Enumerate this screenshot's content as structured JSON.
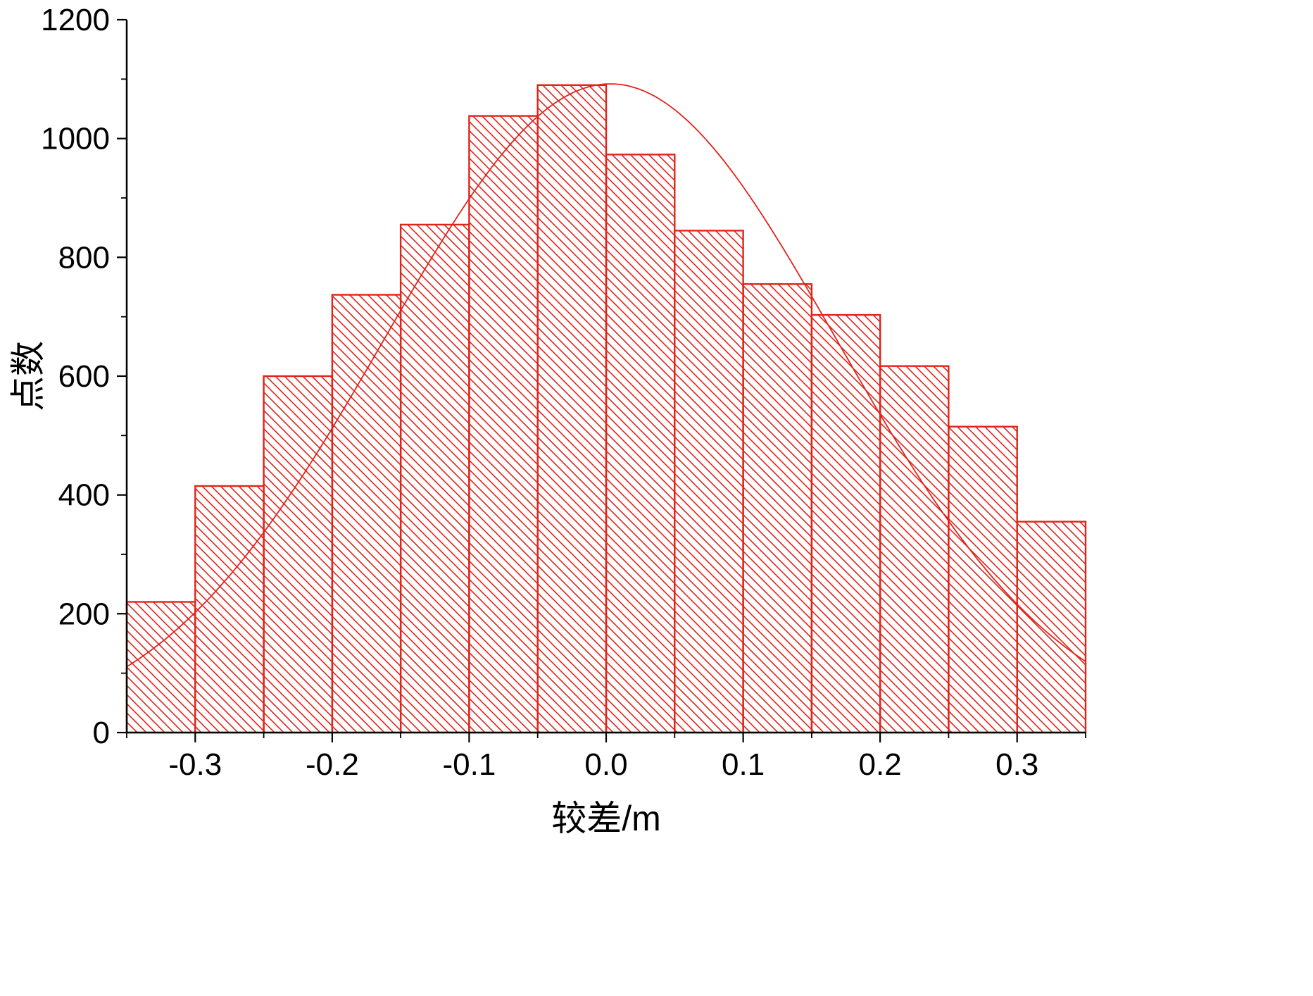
{
  "chart_data": {
    "type": "bar",
    "subtype": "histogram-with-gaussian-fit",
    "title": "",
    "xlabel": "较差/m",
    "ylabel": "点数",
    "xlim": [
      -0.35,
      0.35
    ],
    "ylim": [
      0,
      1200
    ],
    "grid": false,
    "legend": false,
    "x_ticks": [
      -0.3,
      -0.2,
      -0.1,
      0.0,
      0.1,
      0.2,
      0.3
    ],
    "x_tick_labels": [
      "-0.3",
      "-0.2",
      "-0.1",
      "0.0",
      "0.1",
      "0.2",
      "0.3"
    ],
    "x_minor_ticks": [
      -0.35,
      -0.25,
      -0.15,
      -0.05,
      0.05,
      0.15,
      0.25,
      0.35
    ],
    "y_ticks": [
      0,
      200,
      400,
      600,
      800,
      1000,
      1200
    ],
    "y_minor_ticks": [
      100,
      300,
      500,
      700,
      900,
      1100
    ],
    "bin_width": 0.05,
    "bin_edges": [
      -0.35,
      -0.3,
      -0.25,
      -0.2,
      -0.15,
      -0.1,
      -0.05,
      0.0,
      0.05,
      0.1,
      0.15,
      0.2,
      0.25,
      0.3,
      0.35
    ],
    "values": [
      220,
      415,
      600,
      737,
      855,
      1038,
      1090,
      973,
      845,
      755,
      703,
      617,
      515,
      355
    ],
    "fit_curve": {
      "name": "gaussian-fit",
      "amplitude": 1092,
      "mean": 0.003,
      "sigma": 0.165
    },
    "colors": {
      "bar_edge": "#e2231a",
      "hatch": "#e2231a",
      "curve": "#e2231a",
      "axis": "#000000",
      "background": "#ffffff"
    },
    "hatch_style": "diagonal-backslash"
  }
}
